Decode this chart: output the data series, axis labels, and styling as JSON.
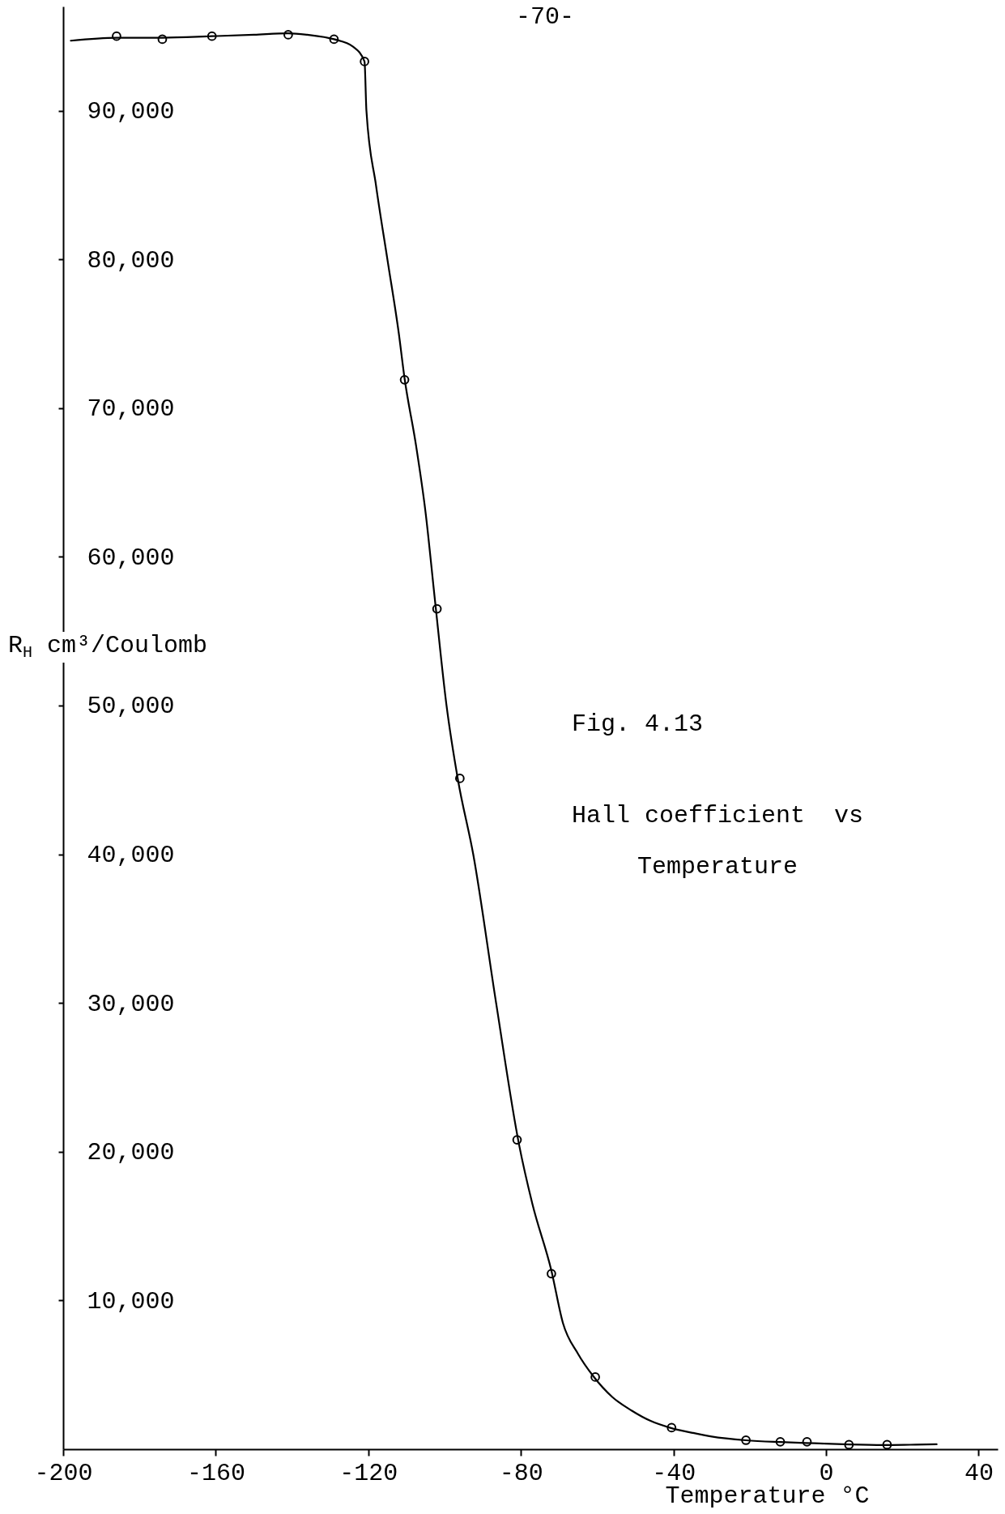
{
  "chart_data": {
    "type": "line",
    "title": "Fig. 4.13",
    "subtitle": "Hall coefficient  vs\nTemperature",
    "xlabel": "Temperature °C",
    "ylabel": "R$_{H}$ cm³/Coulomb",
    "annotations": [
      "-70-"
    ],
    "xlim": [
      -200,
      45
    ],
    "ylim": [
      0,
      97000
    ],
    "xticks": [
      -200,
      -160,
      -120,
      -80,
      -40,
      0,
      40
    ],
    "yticks": [
      {
        "value": 10000,
        "label": "10,000"
      },
      {
        "value": 20000,
        "label": "20,000"
      },
      {
        "value": 30000,
        "label": "30,000"
      },
      {
        "value": 40000,
        "label": "40,000"
      },
      {
        "value": 50000,
        "label": "50,000"
      },
      {
        "value": 60000,
        "label": "60,000"
      },
      {
        "value": 70000,
        "label": "70,000"
      },
      {
        "value": 80000,
        "label": "80,000"
      },
      {
        "value": 90000,
        "label": "90,000"
      }
    ],
    "line_style": "solid",
    "series": [
      {
        "color": "#000000",
        "x": [
          -198,
          -186,
          -174,
          -161,
          -150,
          -141,
          -136,
          -129,
          -124,
          -121,
          -120.5,
          -118,
          -115,
          -112,
          -110.5,
          -107.5,
          -105,
          -102.5,
          -99.5,
          -96.5,
          -92.5,
          -86.5,
          -80.5,
          -77,
          -72,
          -69,
          -65,
          -61,
          -56,
          -51,
          -46,
          -41,
          -35,
          -30,
          -21,
          -12,
          -3,
          6,
          15,
          22,
          29
        ],
        "values": [
          94700,
          94900,
          94900,
          95000,
          95100,
          95200,
          95100,
          94800,
          94300,
          93300,
          90000,
          85000,
          80000,
          75000,
          72000,
          67500,
          63000,
          57000,
          50000,
          45000,
          40000,
          30000,
          20500,
          16500,
          12000,
          8500,
          6400,
          4900,
          3500,
          2600,
          1900,
          1450,
          1100,
          850,
          600,
          480,
          400,
          320,
          280,
          300,
          330
        ]
      },
      {
        "type": "scatter",
        "marker": "circle",
        "color": "#000000",
        "x": [
          -186,
          -174,
          -161,
          -141,
          -129,
          -121,
          -110.5,
          -102,
          -96,
          -81,
          -72,
          -60.5,
          -40.5,
          -21,
          -12,
          -5,
          6,
          16
        ],
        "values": [
          95000,
          94800,
          95000,
          95100,
          94800,
          93300,
          71900,
          56500,
          45100,
          20800,
          11800,
          4850,
          1450,
          600,
          500,
          500,
          300,
          300
        ]
      }
    ]
  }
}
